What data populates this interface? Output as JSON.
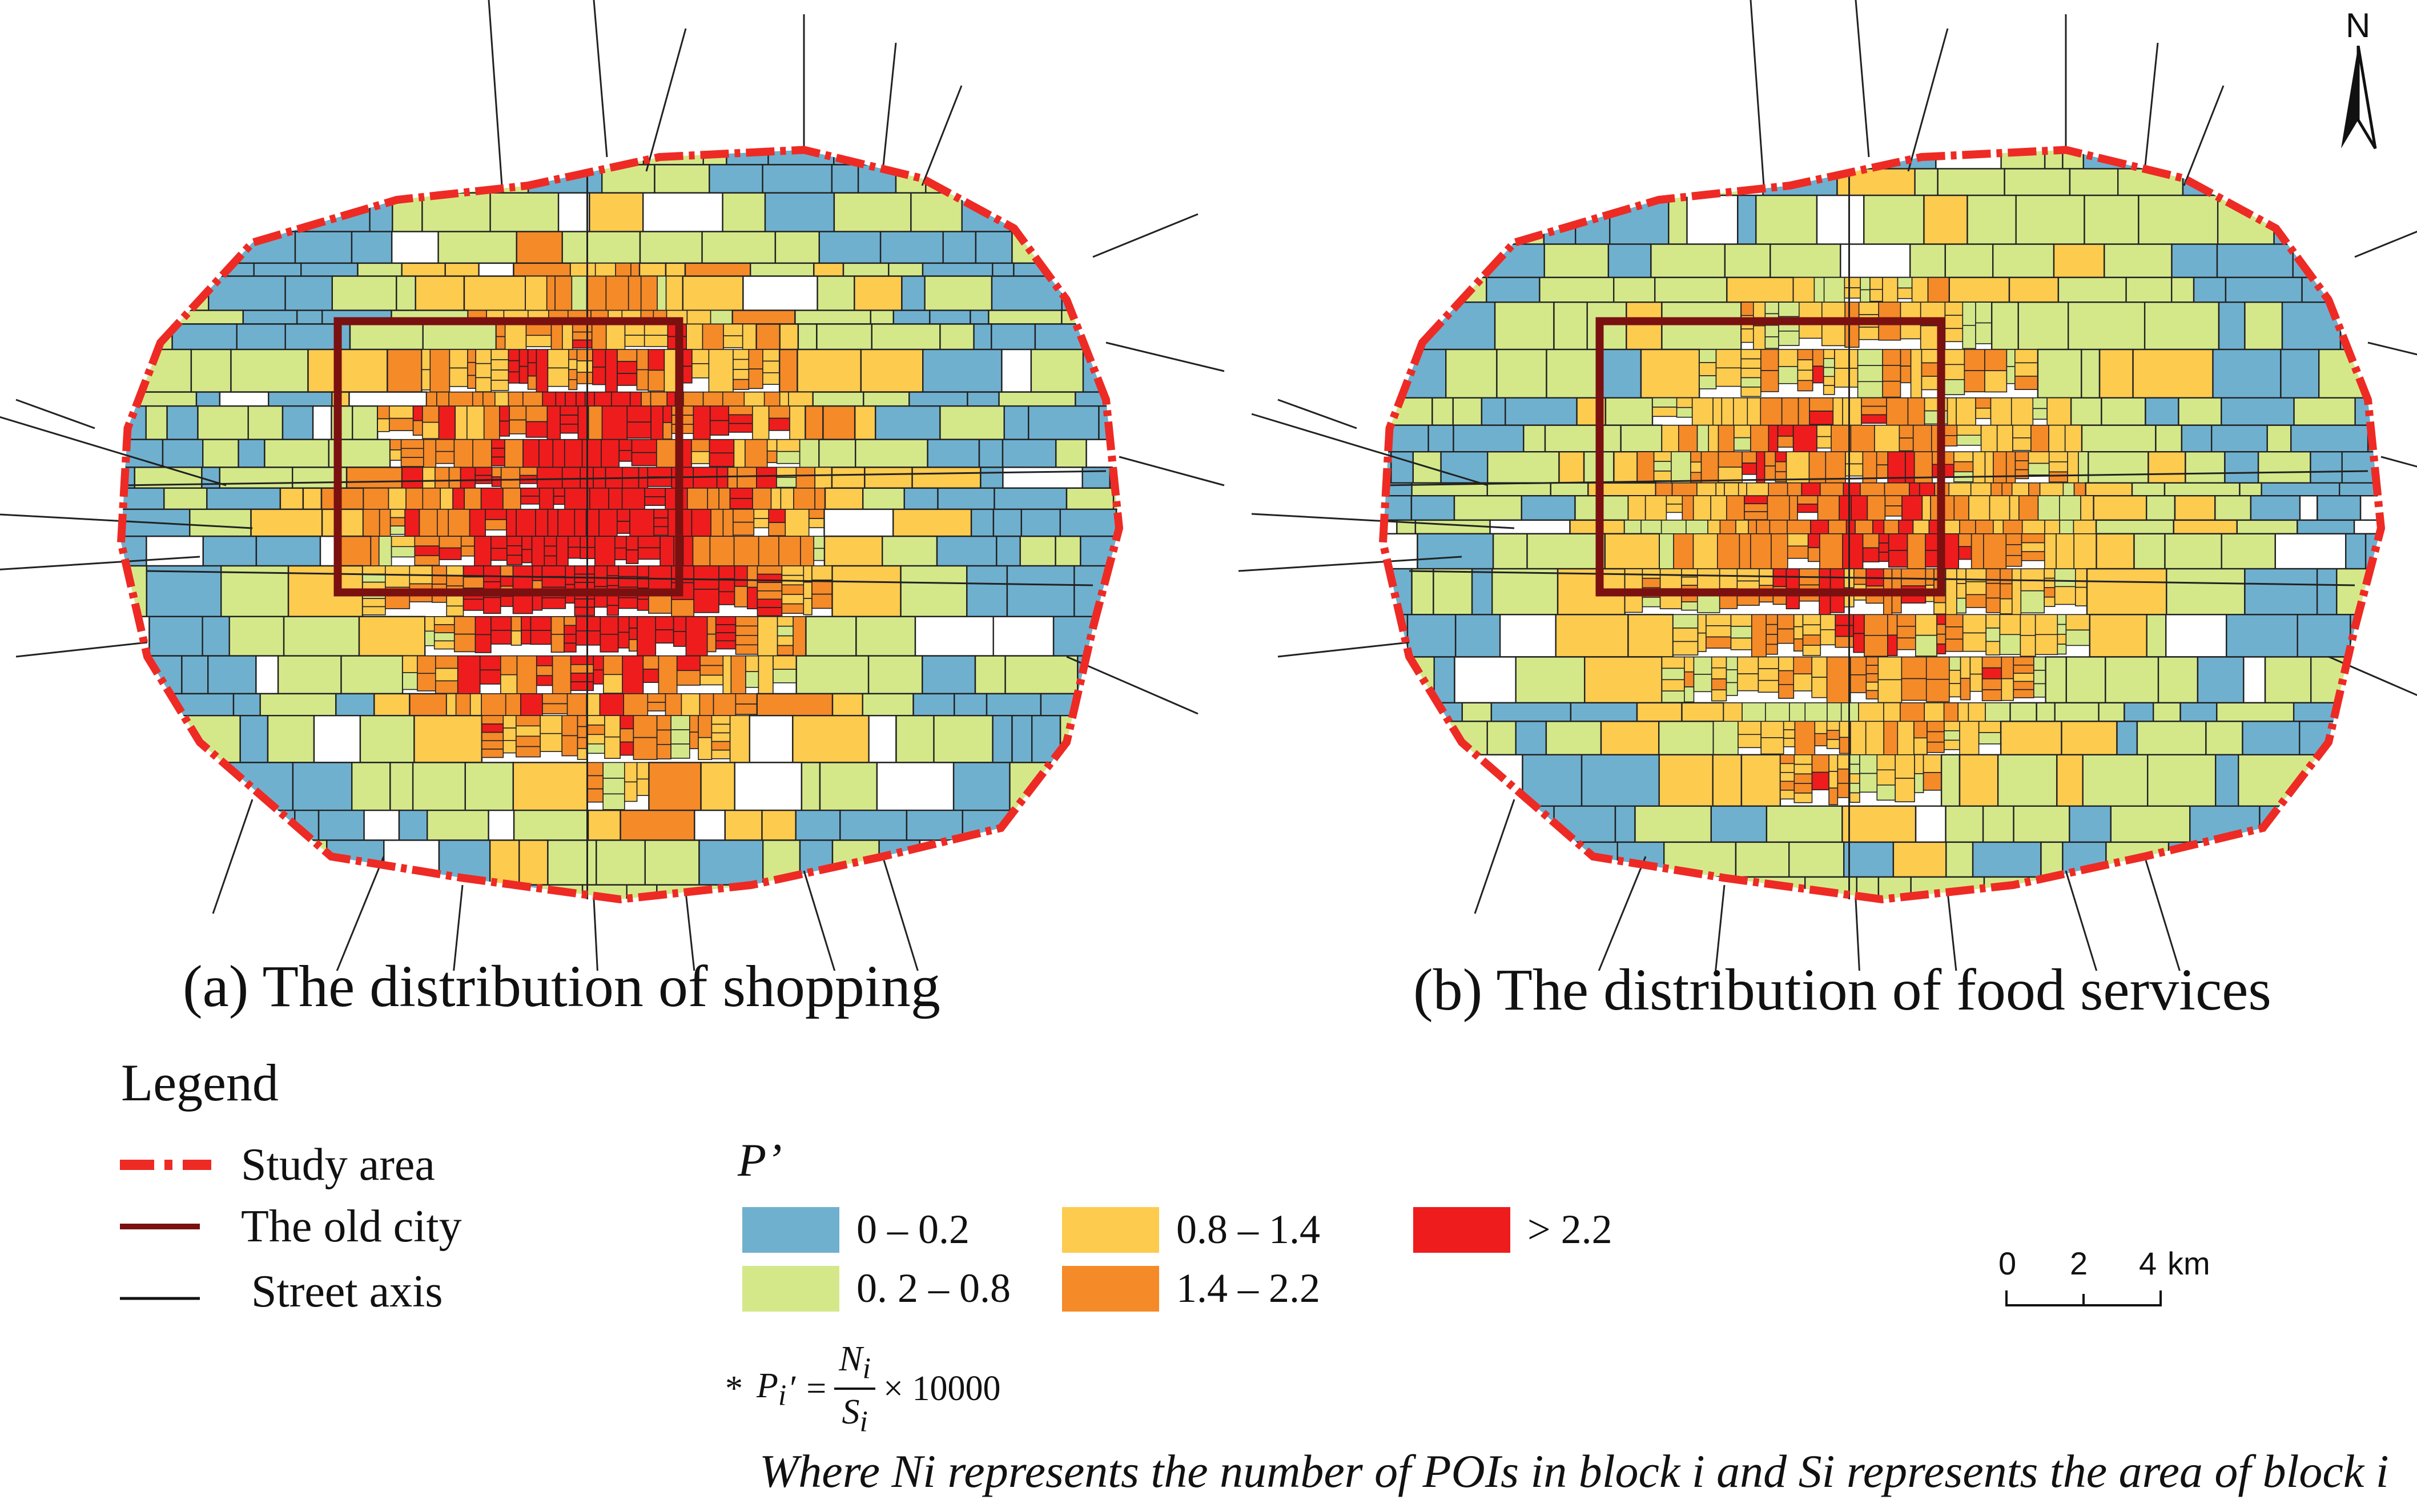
{
  "maps": [
    {
      "id": "a",
      "caption": "(a)  The  distribution of shopping",
      "theme": "shopping"
    },
    {
      "id": "b",
      "caption": "(b)  The  distribution of food services",
      "theme": "food"
    }
  ],
  "legend": {
    "title": "Legend",
    "items": [
      {
        "label": "Study area",
        "color": "#ee2a24",
        "style": "dashed-thick"
      },
      {
        "label": "The old city",
        "color": "#7a1010",
        "style": "solid-thick"
      },
      {
        "label": "Street axis",
        "color": "#111111",
        "style": "solid-thin"
      }
    ]
  },
  "classes": {
    "title": "P’",
    "items": [
      {
        "label": "0 – 0.2",
        "color": "#6fb0cf"
      },
      {
        "label": "0. 2 – 0.8",
        "color": "#d4e88a"
      },
      {
        "label": "0.8 – 1.4",
        "color": "#fdcb4e"
      },
      {
        "label": "1.4 – 2.2",
        "color": "#f58a28"
      },
      {
        "label": "> 2.2",
        "color": "#ee1c1c"
      }
    ]
  },
  "formula": {
    "prefix": "*",
    "lhs": "P",
    "lhs_sub": "i",
    "lhs_prime": "′ =",
    "num": "N",
    "num_sub": "i",
    "den": "S",
    "den_sub": "i",
    "rhs": "× 10000"
  },
  "note": "Where Ni represents the number of POIs in block i and Si represents the area of block i",
  "scale_bar": {
    "ticks": [
      "0",
      "2",
      "4"
    ],
    "unit": "km"
  },
  "north_arrow": {
    "label": "N"
  }
}
